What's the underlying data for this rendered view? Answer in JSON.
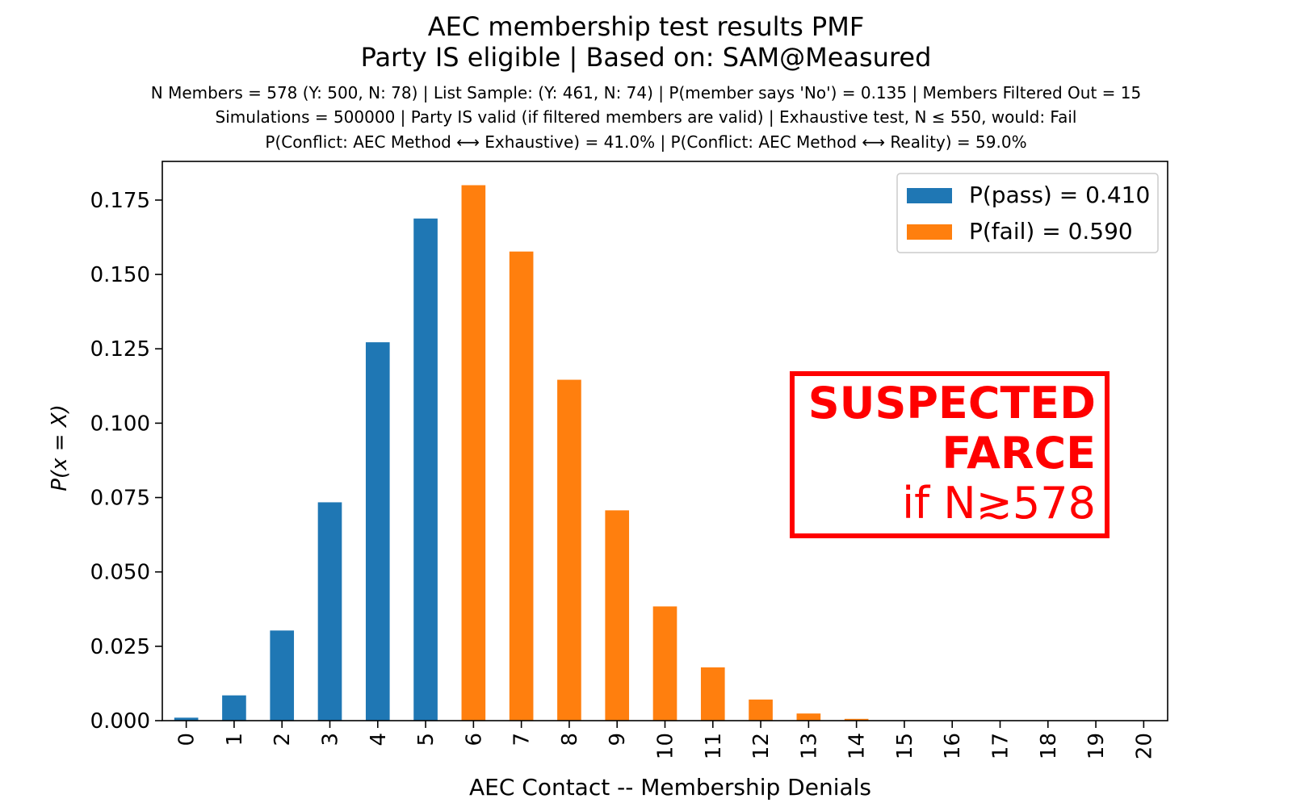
{
  "chart_data": {
    "type": "bar",
    "title": "AEC membership test results PMF",
    "title_line2": "Party IS eligible | Based on: SAM@Measured",
    "subtitle_lines": [
      "N Members = 578 (Y: 500, N: 78) | List Sample: (Y: 461, N: 74) | P(member says 'No') = 0.135 | Members Filtered Out = 15",
      "Simulations = 500000 | Party IS valid (if filtered members are valid) | Exhaustive test, N ≤ 550, would: Fail",
      "P(Conflict: AEC Method ⟷ Exhaustive) = 41.0% | P(Conflict: AEC Method ⟷ Reality) = 59.0%"
    ],
    "xlabel": "AEC Contact -- Membership Denials",
    "ylabel": "P(x = X)",
    "ylim": [
      0,
      0.188
    ],
    "yticks": [
      "0.000",
      "0.025",
      "0.050",
      "0.075",
      "0.100",
      "0.125",
      "0.150",
      "0.175"
    ],
    "categories": [
      "0",
      "1",
      "2",
      "3",
      "4",
      "5",
      "6",
      "7",
      "8",
      "9",
      "10",
      "11",
      "12",
      "13",
      "14",
      "15",
      "16",
      "17",
      "18",
      "19",
      "20"
    ],
    "values": [
      0.001,
      0.0085,
      0.0303,
      0.0734,
      0.1272,
      0.1688,
      0.18,
      0.1577,
      0.1146,
      0.0707,
      0.0384,
      0.0179,
      0.0071,
      0.0024,
      0.0006,
      0.0001,
      0.0,
      0.0,
      0.0,
      0.0,
      0.0
    ],
    "series": [
      {
        "name": "P(pass) = 0.410",
        "categories_range": [
          0,
          5
        ],
        "color": "#1f77b4"
      },
      {
        "name": "P(fail) = 0.590",
        "categories_range": [
          6,
          20
        ],
        "color": "#ff7f0e"
      }
    ],
    "legend_position": "top-right",
    "grid": false,
    "annotation": {
      "line1": "SUSPECTED",
      "line2": "FARCE",
      "line3": "if N≳578",
      "color": "#ff0000"
    }
  }
}
